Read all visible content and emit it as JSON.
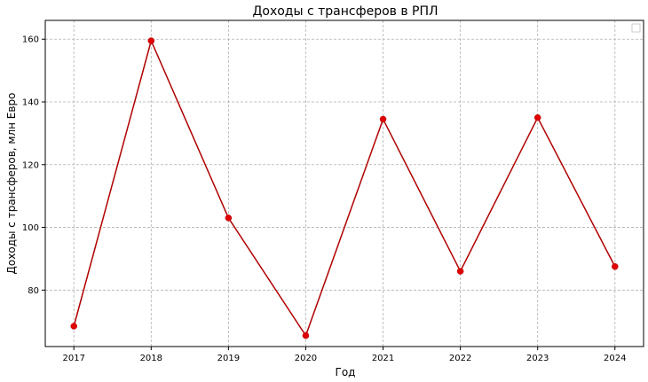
{
  "chart_data": {
    "type": "line",
    "title": "Доходы с трансферов в РПЛ",
    "xlabel": "Год",
    "ylabel": "Доходы с трансферов, млн Евро",
    "x": [
      2017,
      2018,
      2019,
      2020,
      2021,
      2022,
      2023,
      2024
    ],
    "x_tick_labels": [
      "2017",
      "2018",
      "2019",
      "2020",
      "2021",
      "2022",
      "2023",
      "2024"
    ],
    "y_ticks": [
      80,
      100,
      120,
      140,
      160
    ],
    "y_tick_labels": [
      "80",
      "100",
      "120",
      "140",
      "160"
    ],
    "ylim": [
      62,
      166
    ],
    "xlim": [
      2016.63,
      2024.37
    ],
    "grid": true,
    "legend": "top-right, empty",
    "series": [
      {
        "values": [
          68.5,
          159.5,
          103,
          65.5,
          134.5,
          86,
          135,
          87.5
        ],
        "line_color": "#b00000",
        "marker_color": "#e00000"
      }
    ]
  }
}
